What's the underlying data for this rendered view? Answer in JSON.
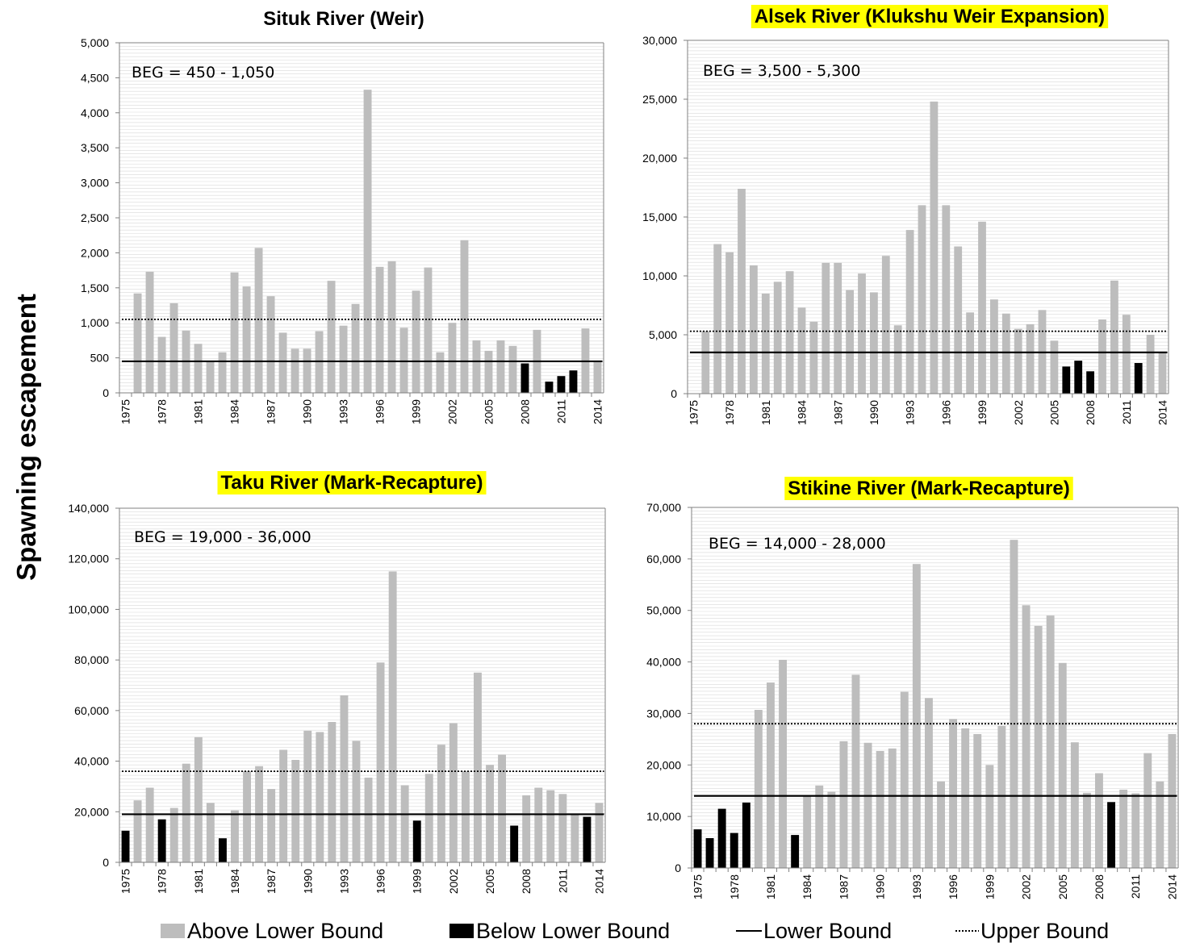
{
  "ylabel": "Spawning escapement",
  "legend": {
    "above": "Above Lower Bound",
    "below": "Below Lower Bound",
    "lower": "Lower Bound",
    "upper": "Upper Bound"
  },
  "colors": {
    "above": "#bdbdbd",
    "below": "#000000",
    "highlight": "#ffff00",
    "grid": "#d9d9d9"
  },
  "chart_data": [
    {
      "type": "bar",
      "title": "Situk River (Weir)",
      "highlighted": false,
      "beg": "BEG = 450 - 1,050",
      "lower_bound": 450,
      "upper_bound": 1050,
      "ylim": [
        0,
        5000
      ],
      "yticks": [
        0,
        500,
        1000,
        1500,
        2000,
        2500,
        3000,
        3500,
        4000,
        4500,
        5000
      ],
      "ytick_labels": [
        "0",
        "500",
        "1,000",
        "1,500",
        "2,000",
        "2,500",
        "3,000",
        "3,500",
        "4,000",
        "4,500",
        "5,000"
      ],
      "xtick_labels": [
        "1975",
        "1978",
        "1981",
        "1984",
        "1987",
        "1990",
        "1993",
        "1996",
        "1999",
        "2002",
        "2005",
        "2008",
        "2011",
        "2014"
      ],
      "years": [
        1975,
        1976,
        1977,
        1978,
        1979,
        1980,
        1981,
        1982,
        1983,
        1984,
        1985,
        1986,
        1987,
        1988,
        1989,
        1990,
        1991,
        1992,
        1993,
        1994,
        1995,
        1996,
        1997,
        1998,
        1999,
        2000,
        2001,
        2002,
        2003,
        2004,
        2005,
        2006,
        2007,
        2008,
        2009,
        2010,
        2011,
        2012,
        2013,
        2014
      ],
      "values": [
        null,
        1420,
        1730,
        800,
        1280,
        890,
        700,
        450,
        580,
        1720,
        1520,
        2070,
        1380,
        860,
        630,
        630,
        880,
        1600,
        960,
        1270,
        4330,
        1800,
        1880,
        930,
        1460,
        1790,
        580,
        1000,
        2180,
        750,
        600,
        750,
        670,
        420,
        900,
        160,
        240,
        320,
        920,
        460
      ]
    },
    {
      "type": "bar",
      "title": "Alsek River (Klukshu Weir Expansion)",
      "highlighted": true,
      "beg": "BEG = 3,500 - 5,300",
      "lower_bound": 3500,
      "upper_bound": 5300,
      "ylim": [
        0,
        30000
      ],
      "yticks": [
        0,
        5000,
        10000,
        15000,
        20000,
        25000,
        30000
      ],
      "ytick_labels": [
        "0",
        "5,000",
        "10,000",
        "15,000",
        "20,000",
        "25,000",
        "30,000"
      ],
      "xtick_labels": [
        "1975",
        "1978",
        "1981",
        "1984",
        "1987",
        "1990",
        "1993",
        "1996",
        "1999",
        "2002",
        "2005",
        "2008",
        "2011",
        "2014"
      ],
      "years": [
        1975,
        1976,
        1977,
        1978,
        1979,
        1980,
        1981,
        1982,
        1983,
        1984,
        1985,
        1986,
        1987,
        1988,
        1989,
        1990,
        1991,
        1992,
        1993,
        1994,
        1995,
        1996,
        1997,
        1998,
        1999,
        2000,
        2001,
        2002,
        2003,
        2004,
        2005,
        2006,
        2007,
        2008,
        2009,
        2010,
        2011,
        2012,
        2013,
        2014
      ],
      "values": [
        null,
        5300,
        12700,
        12000,
        17400,
        10900,
        8500,
        9500,
        10400,
        7300,
        6100,
        11100,
        11100,
        8800,
        10200,
        8600,
        11700,
        5800,
        13900,
        16000,
        24800,
        16000,
        12500,
        6900,
        14600,
        8000,
        6800,
        5500,
        5900,
        7100,
        4500,
        2300,
        2800,
        1900,
        6300,
        9600,
        6700,
        2600,
        5000,
        3500
      ]
    },
    {
      "type": "bar",
      "title": "Taku River (Mark-Recapture)",
      "highlighted": true,
      "beg": "BEG = 19,000 - 36,000",
      "lower_bound": 19000,
      "upper_bound": 36000,
      "ylim": [
        0,
        140000
      ],
      "yticks": [
        0,
        20000,
        40000,
        60000,
        80000,
        100000,
        120000,
        140000
      ],
      "ytick_labels": [
        "0",
        "20,000",
        "40,000",
        "60,000",
        "80,000",
        "100,000",
        "120,000",
        "140,000"
      ],
      "xtick_labels": [
        "1975",
        "1978",
        "1981",
        "1984",
        "1987",
        "1990",
        "1993",
        "1996",
        "1999",
        "2002",
        "2005",
        "2008",
        "2011",
        "2014"
      ],
      "years": [
        1975,
        1976,
        1977,
        1978,
        1979,
        1980,
        1981,
        1982,
        1983,
        1984,
        1985,
        1986,
        1987,
        1988,
        1989,
        1990,
        1991,
        1992,
        1993,
        1994,
        1995,
        1996,
        1997,
        1998,
        1999,
        2000,
        2001,
        2002,
        2003,
        2004,
        2005,
        2006,
        2007,
        2008,
        2009,
        2010,
        2011,
        2012,
        2013,
        2014
      ],
      "values": [
        12500,
        24500,
        29500,
        17000,
        21500,
        39000,
        49500,
        23500,
        9500,
        20500,
        36000,
        38000,
        29000,
        44500,
        40500,
        52000,
        51500,
        55500,
        66000,
        48000,
        33500,
        79000,
        115000,
        30500,
        16500,
        35000,
        46500,
        55000,
        36000,
        75000,
        38500,
        42500,
        14500,
        26500,
        29500,
        28500,
        27000,
        19000,
        18000,
        23500
      ]
    },
    {
      "type": "bar",
      "title": "Stikine River (Mark-Recapture)",
      "highlighted": true,
      "beg": "BEG = 14,000 - 28,000",
      "lower_bound": 14000,
      "upper_bound": 28000,
      "ylim": [
        0,
        70000
      ],
      "yticks": [
        0,
        10000,
        20000,
        30000,
        40000,
        50000,
        60000,
        70000
      ],
      "ytick_labels": [
        "0",
        "10,000",
        "20,000",
        "30,000",
        "40,000",
        "50,000",
        "60,000",
        "70,000"
      ],
      "xtick_labels": [
        "1975",
        "1978",
        "1981",
        "1984",
        "1987",
        "1990",
        "1993",
        "1996",
        "1999",
        "2002",
        "2005",
        "2008",
        "2011",
        "2014"
      ],
      "years": [
        1975,
        1976,
        1977,
        1978,
        1979,
        1980,
        1981,
        1982,
        1983,
        1984,
        1985,
        1986,
        1987,
        1988,
        1989,
        1990,
        1991,
        1992,
        1993,
        1994,
        1995,
        1996,
        1997,
        1998,
        1999,
        2000,
        2001,
        2002,
        2003,
        2004,
        2005,
        2006,
        2007,
        2008,
        2009,
        2010,
        2011,
        2012,
        2013,
        2014
      ],
      "values": [
        7500,
        5800,
        11500,
        6800,
        12700,
        30700,
        36000,
        40400,
        6400,
        14000,
        16000,
        14800,
        24600,
        37500,
        24300,
        22700,
        23200,
        34200,
        59000,
        33000,
        16800,
        28900,
        27100,
        26000,
        20000,
        27600,
        63700,
        51000,
        47000,
        49000,
        39800,
        24400,
        14600,
        18400,
        12800,
        15200,
        14500,
        22300,
        16800,
        26000
      ]
    }
  ]
}
